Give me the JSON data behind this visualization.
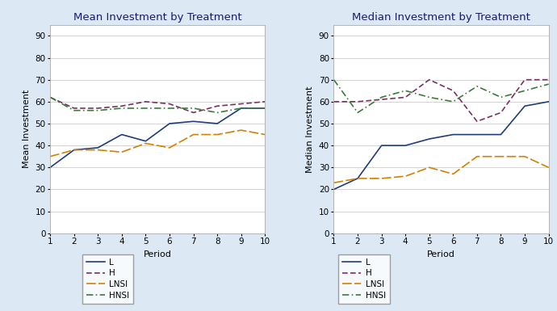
{
  "periods": [
    1,
    2,
    3,
    4,
    5,
    6,
    7,
    8,
    9,
    10
  ],
  "mean": {
    "L": [
      30,
      38,
      39,
      45,
      42,
      50,
      51,
      50,
      57,
      57
    ],
    "H": [
      62,
      57,
      57,
      58,
      60,
      59,
      55,
      58,
      59,
      60
    ],
    "LNSI": [
      35,
      38,
      38,
      37,
      41,
      39,
      45,
      45,
      47,
      45
    ],
    "HNSI": [
      62,
      56,
      56,
      57,
      57,
      57,
      57,
      55,
      57,
      57
    ]
  },
  "median": {
    "L": [
      20,
      25,
      40,
      40,
      43,
      45,
      45,
      45,
      58,
      60
    ],
    "H": [
      60,
      60,
      61,
      62,
      70,
      65,
      51,
      55,
      70,
      70
    ],
    "LNSI": [
      23,
      25,
      25,
      26,
      30,
      27,
      35,
      35,
      35,
      30
    ],
    "HNSI": [
      70,
      55,
      62,
      65,
      62,
      60,
      67,
      62,
      65,
      68
    ]
  },
  "colors": {
    "L": "#1f3d7a",
    "H": "#7b3060",
    "LNSI": "#d48000",
    "HNSI": "#3a7a3a"
  },
  "title_mean": "Mean Investment by Treatment",
  "title_median": "Median Investment by Treatment",
  "xlabel": "Period",
  "ylabel_mean": "Mean Investment",
  "ylabel_median": "Median Investment",
  "ylim": [
    0,
    95
  ],
  "yticks": [
    0,
    10,
    20,
    30,
    40,
    50,
    60,
    70,
    80,
    90
  ],
  "bg_color": "#dce9f5",
  "plot_bg": "#ffffff",
  "title_fontsize": 9.5,
  "label_fontsize": 8,
  "tick_fontsize": 7.5,
  "legend_fontsize": 7.5
}
